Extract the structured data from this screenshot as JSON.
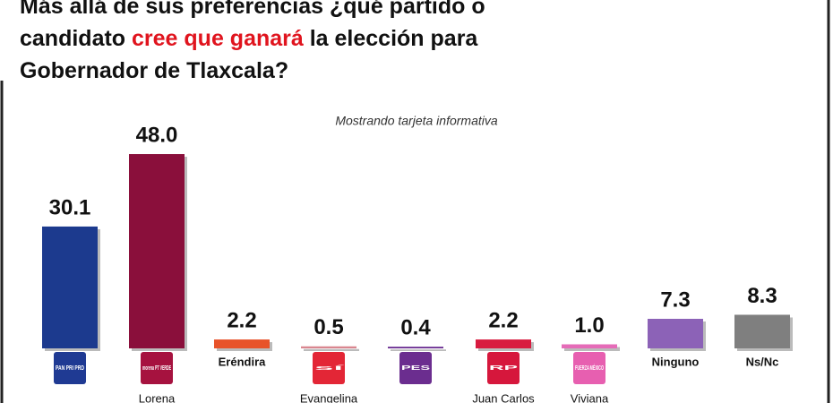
{
  "chart_data": {
    "type": "bar",
    "title": [
      [
        "Más allá de sus preferencias ¿qué partido o"
      ],
      [
        "candidato ",
        "cree que ganará",
        " la elección para"
      ],
      [
        "Gobernador de Tlaxcala?"
      ]
    ],
    "title_highlight": [
      1,
      1
    ],
    "highlight_color": "#e0141e",
    "subtitle": "Mostrando tarjeta informativa",
    "categories": [
      null,
      "Lorena",
      "Eréndira",
      "Evangelina",
      null,
      "Juan Carlos",
      "Viviana",
      "Ninguno",
      "Ns/Nc"
    ],
    "logos": [
      "PAN PRI PRD",
      "morena PT VERDE",
      null,
      "sí",
      "PES",
      "RP",
      "FUERZA MÉXICO",
      null,
      null
    ],
    "logo_colors": [
      "#1f3a93",
      "#a6123f",
      "#f26522",
      "#e32636",
      "#6b2d8f",
      "#d6173c",
      "#e75fb0",
      null,
      null
    ],
    "values": [
      30.1,
      48.0,
      2.2,
      0.5,
      0.4,
      2.2,
      1.0,
      7.3,
      8.3
    ],
    "value_labels": [
      "30.1",
      "48.0",
      "2.2",
      "0.5",
      "0.4",
      "2.2",
      "1.0",
      "7.3",
      "8.3"
    ],
    "colors": [
      "#1c3a8e",
      "#8a0f3b",
      "#e8532a",
      "#d9868f",
      "#6a2c91",
      "#d81b3f",
      "#e56cb8",
      "#8c62b7",
      "#7f7f7f"
    ]
  }
}
